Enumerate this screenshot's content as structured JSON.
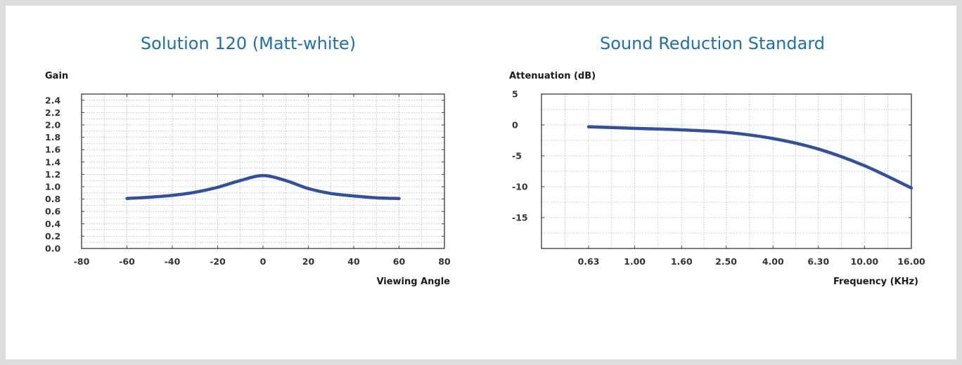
{
  "chart_data": [
    {
      "type": "line",
      "title": "Solution 120 (Matt-white)",
      "ylabel": "Gain",
      "xlabel": "Viewing Angle",
      "xlim": [
        -80,
        80
      ],
      "ylim": [
        0,
        2.5
      ],
      "x_ticks": [
        "-80",
        "-60",
        "-40",
        "-20",
        "0",
        "20",
        "40",
        "60",
        "80"
      ],
      "y_ticks": [
        "0.0",
        "0.2",
        "0.4",
        "0.6",
        "0.8",
        "1.0",
        "1.2",
        "1.4",
        "1.6",
        "1.8",
        "2.0",
        "2.2",
        "2.4"
      ],
      "grid": true,
      "series": [
        {
          "color": "#34509a",
          "x": [
            -60,
            -50,
            -40,
            -30,
            -20,
            -10,
            0,
            10,
            20,
            30,
            40,
            50,
            60
          ],
          "y": [
            0.81,
            0.83,
            0.86,
            0.91,
            0.99,
            1.1,
            1.18,
            1.1,
            0.97,
            0.89,
            0.85,
            0.82,
            0.81
          ]
        }
      ]
    },
    {
      "type": "line",
      "title": "Sound Reduction Standard",
      "ylabel": "Attenuation (dB)",
      "xlabel": "Frequency (KHz)",
      "ylim": [
        -20,
        5
      ],
      "x_scale": "log",
      "x_ticks": [
        "0.63",
        "1.00",
        "1.60",
        "2.50",
        "4.00",
        "6.30",
        "10.00",
        "16.00"
      ],
      "y_ticks": [
        "5",
        "0",
        "-5",
        "-10",
        "-15"
      ],
      "grid": true,
      "series": [
        {
          "color": "#34509a",
          "x": [
            0.63,
            1.0,
            1.6,
            2.5,
            4.0,
            6.3,
            10.0,
            16.0
          ],
          "y": [
            -0.3,
            -0.55,
            -0.8,
            -1.2,
            -2.2,
            -3.9,
            -6.6,
            -10.2
          ]
        }
      ]
    }
  ]
}
